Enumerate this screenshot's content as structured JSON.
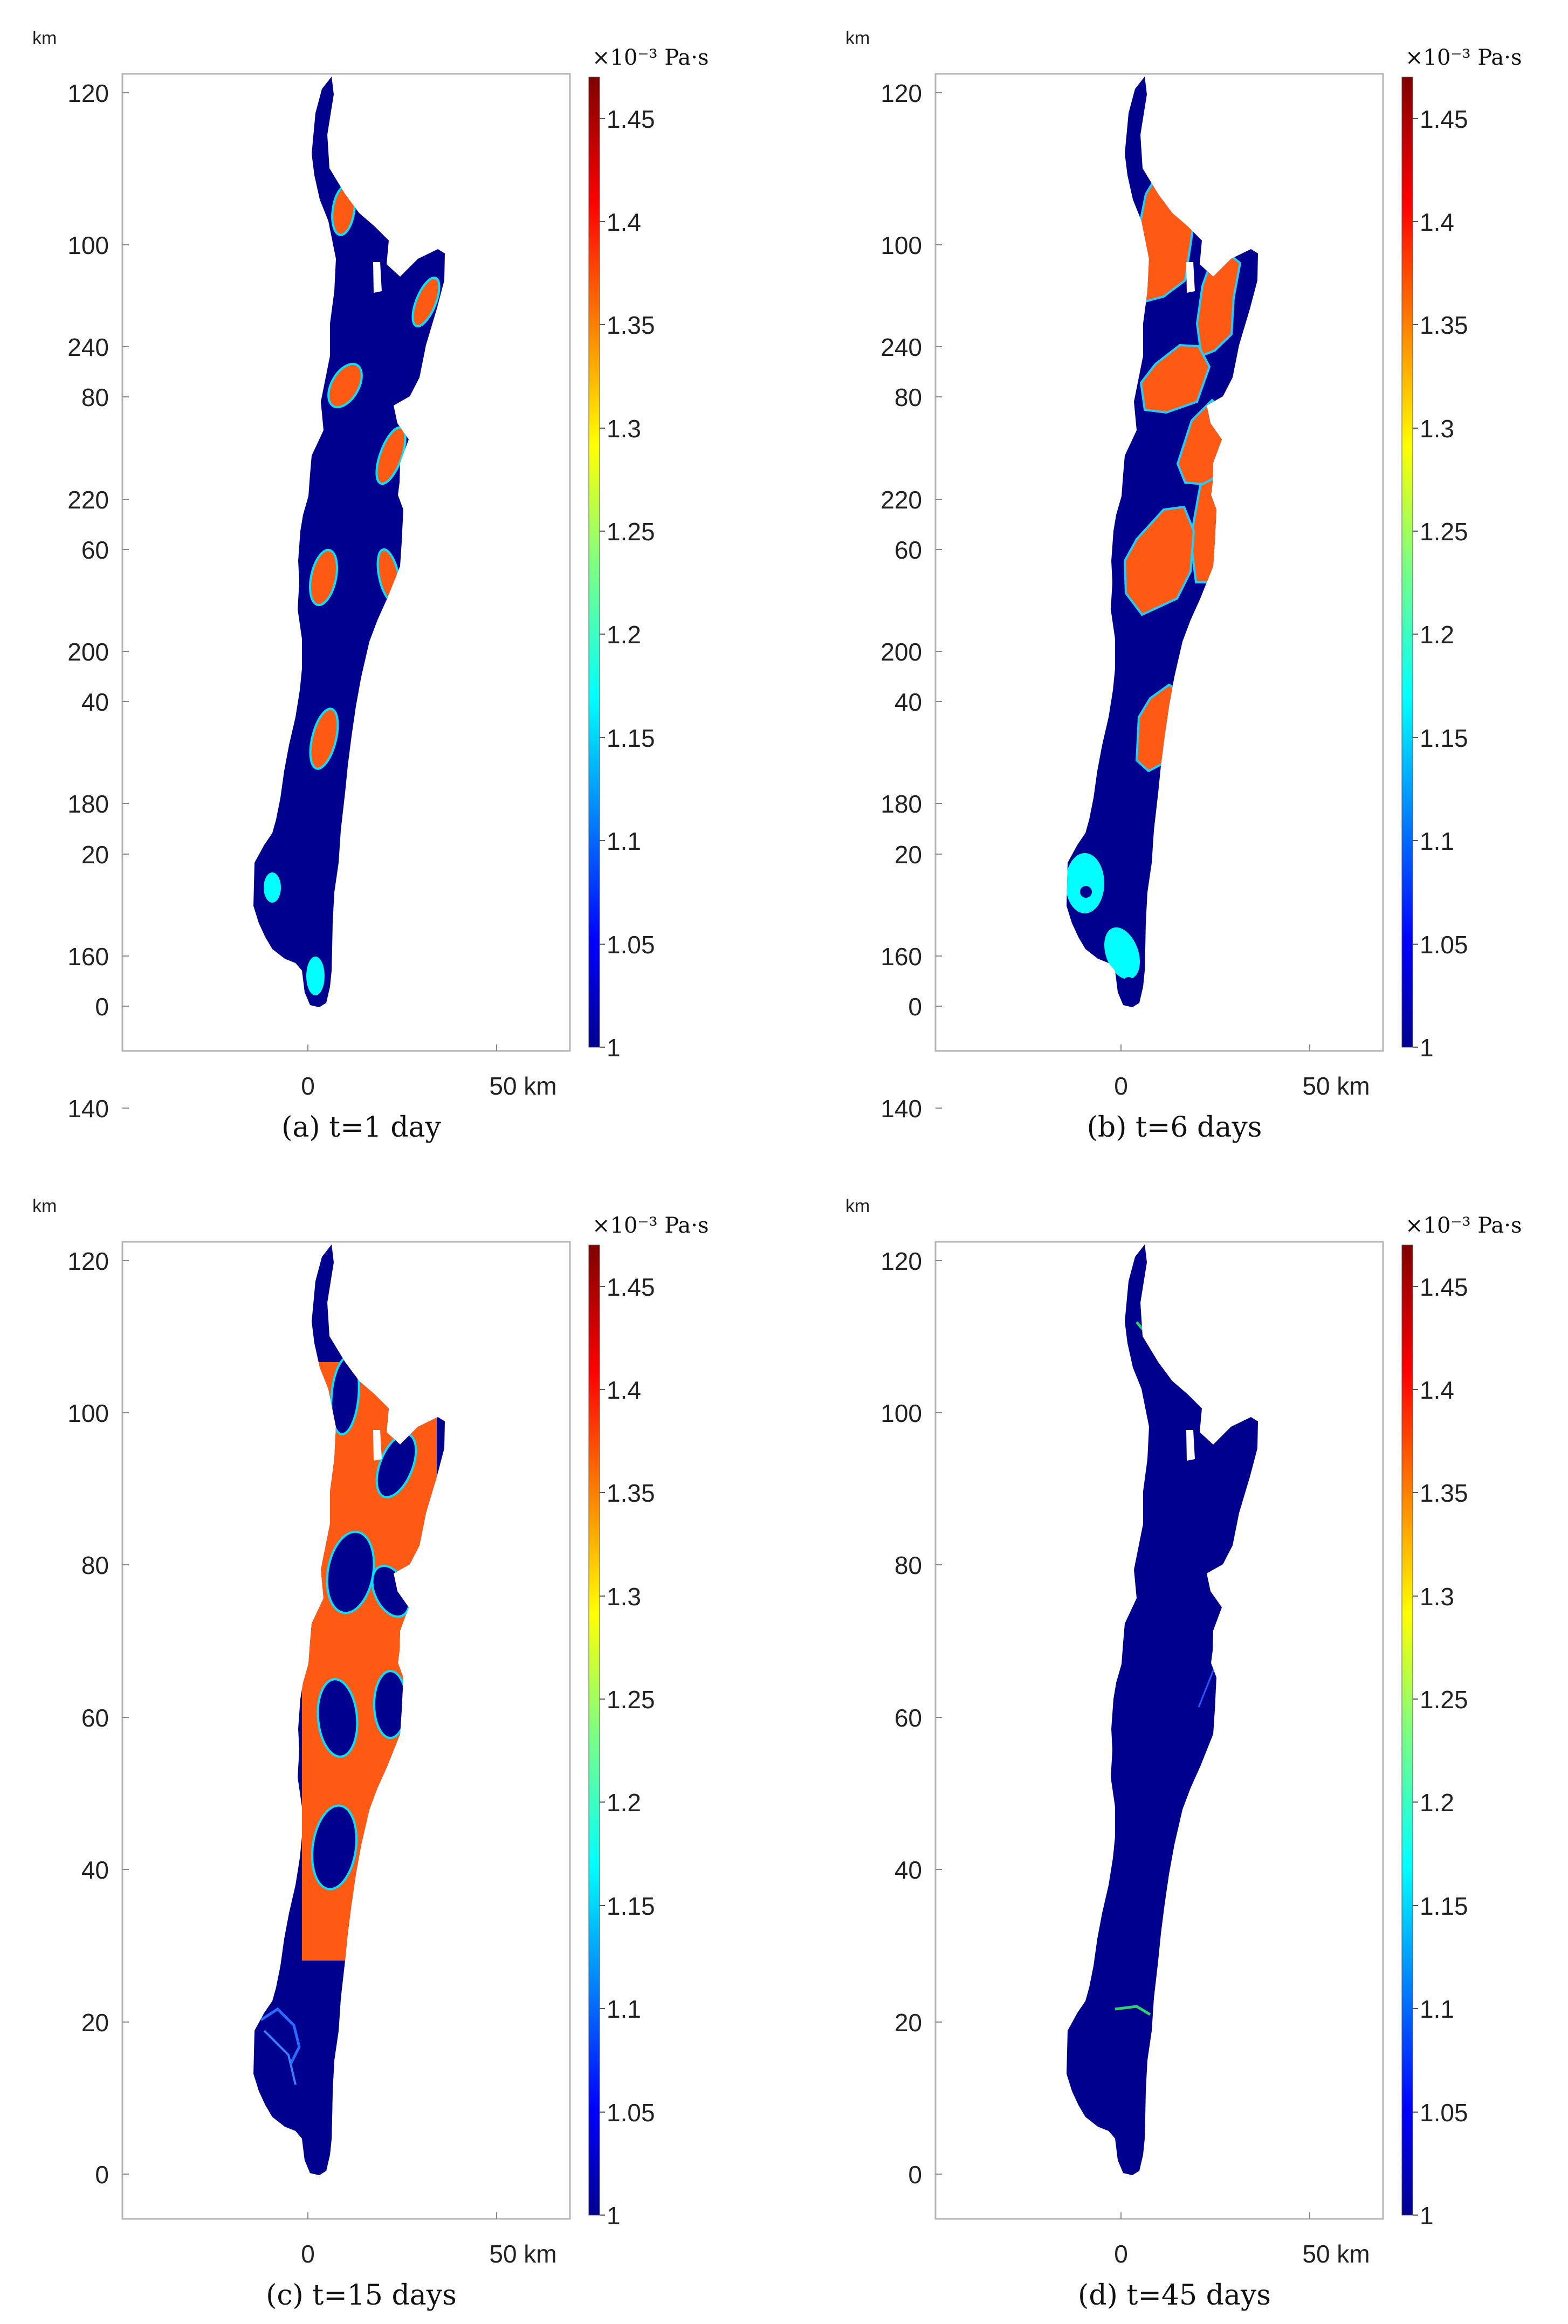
{
  "chart_data": [
    {
      "type": "heatmap",
      "caption": "(a) t=1 day",
      "y_unit_label": "km",
      "y_ticks": [
        0,
        20,
        40,
        60,
        80,
        100,
        120,
        140,
        160,
        180,
        200,
        220,
        240
      ],
      "x_ticks": [
        "0",
        "50 km"
      ],
      "colorbar": {
        "unit_label": "×10⁻³ Pa·s",
        "ticks": [
          1,
          1.05,
          1.1,
          1.15,
          1.2,
          1.25,
          1.3,
          1.35,
          1.4,
          1.45
        ],
        "range": [
          1,
          1.47
        ]
      },
      "state": "a"
    },
    {
      "type": "heatmap",
      "caption": "(b) t=6 days",
      "y_unit_label": "km",
      "y_ticks": [
        0,
        20,
        40,
        60,
        80,
        100,
        120,
        140,
        160,
        180,
        200,
        220,
        240
      ],
      "x_ticks": [
        "0",
        "50 km"
      ],
      "colorbar": {
        "unit_label": "×10⁻³ Pa·s",
        "ticks": [
          1,
          1.05,
          1.1,
          1.15,
          1.2,
          1.25,
          1.3,
          1.35,
          1.4,
          1.45
        ],
        "range": [
          1,
          1.47
        ]
      },
      "state": "b"
    },
    {
      "type": "heatmap",
      "caption": "(c) t=15 days",
      "y_unit_label": "km",
      "y_ticks": [
        0,
        20,
        40,
        60,
        80,
        100,
        120,
        140,
        160,
        180,
        200,
        220,
        240
      ],
      "x_ticks": [
        "0",
        "50 km"
      ],
      "colorbar": {
        "unit_label": "×10⁻³ Pa·s",
        "ticks": [
          1,
          1.05,
          1.1,
          1.15,
          1.2,
          1.25,
          1.3,
          1.35,
          1.4,
          1.45
        ],
        "range": [
          1,
          1.47
        ]
      },
      "state": "c"
    },
    {
      "type": "heatmap",
      "caption": "(d) t=45 days",
      "y_unit_label": "km",
      "y_ticks": [
        0,
        20,
        40,
        60,
        80,
        100,
        120,
        140,
        160,
        180,
        200,
        220,
        240
      ],
      "x_ticks": [
        "0",
        "50 km"
      ],
      "colorbar": {
        "unit_label": "×10⁻³ Pa·s",
        "ticks": [
          1,
          1.05,
          1.1,
          1.15,
          1.2,
          1.25,
          1.3,
          1.35,
          1.4,
          1.45
        ],
        "range": [
          1,
          1.47
        ]
      },
      "state": "d"
    }
  ],
  "colors": {
    "background_field": "#00008f",
    "high_value": "#ff5a14",
    "low_value": "#00ffff"
  }
}
